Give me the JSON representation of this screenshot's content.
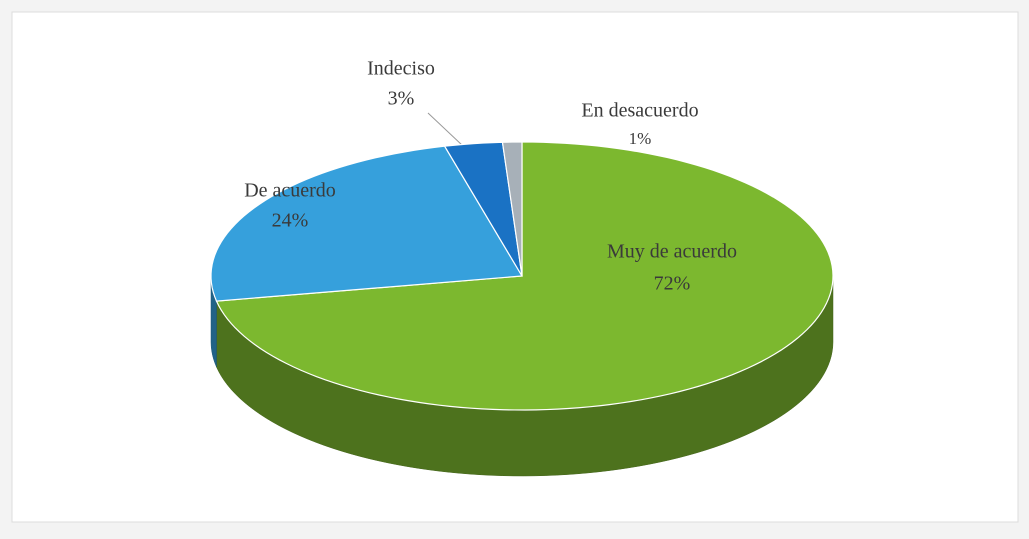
{
  "chart_data": {
    "type": "pie3d",
    "categories": [
      "Muy de acuerdo",
      "De acuerdo",
      "Indeciso",
      "En desacuerdo"
    ],
    "values": [
      72,
      24,
      3,
      1
    ],
    "value_labels": [
      "72%",
      "24%",
      "3%",
      "1%"
    ],
    "colors": [
      "#7cb82f",
      "#36a0dc",
      "#1a72c4",
      "#a7b0b8"
    ]
  }
}
